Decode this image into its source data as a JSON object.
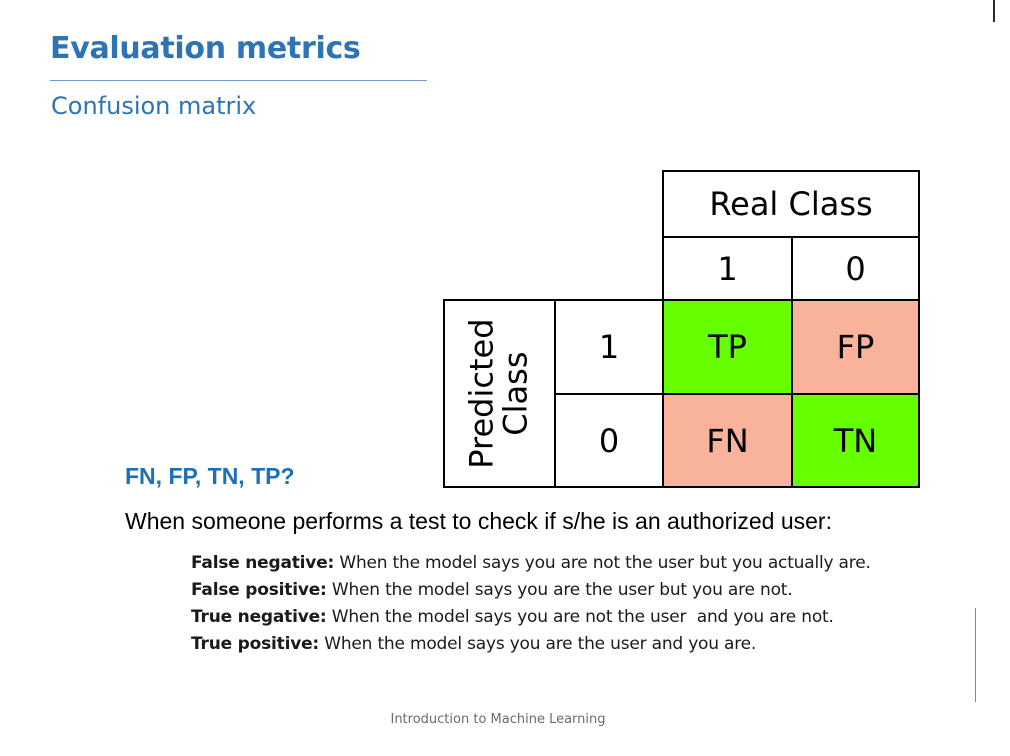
{
  "slide": {
    "title": "Evaluation metrics",
    "subtitle": "Confusion matrix"
  },
  "matrix": {
    "real_header": "Real Class",
    "real_labels": [
      "1",
      "0"
    ],
    "predicted_header_line1": "Predicted",
    "predicted_header_line2": "Class",
    "predicted_labels": [
      "1",
      "0"
    ],
    "cells": {
      "tp": "TP",
      "fp": "FP",
      "fn": "FN",
      "tn": "TN"
    },
    "colors": {
      "true_cell": "#66FF00",
      "false_cell": "#F8B39A"
    }
  },
  "question": "FN, FP, TN, TP?",
  "lead": "When someone performs a test to check if s/he is an authorized user:",
  "definitions": [
    {
      "term": "False negative:",
      "text": " When the model says you are not the user but you actually are."
    },
    {
      "term": "False positive:",
      "text": " When the model says you are the user but you are not."
    },
    {
      "term": "True negative:",
      "text": " When the model says you are not the user  and you are not."
    },
    {
      "term": "True positive:",
      "text": " When the model says you are the user and you are."
    }
  ],
  "footer": "Introduction to Machine Learning",
  "colors": {
    "title": "#2E74B5",
    "question": "#1F6FB7"
  }
}
